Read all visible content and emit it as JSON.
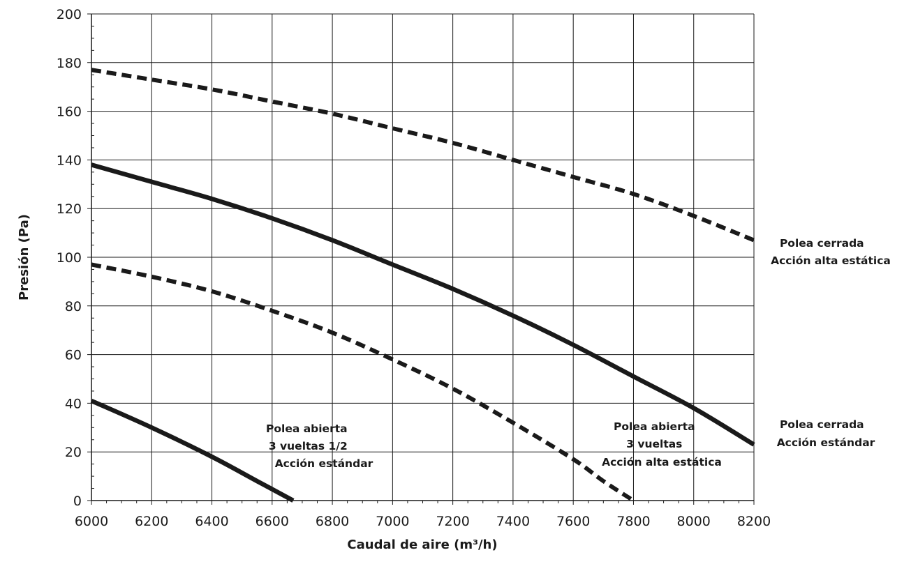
{
  "chart_data": {
    "type": "line",
    "xlabel": "Caudal de aire (m³/h)",
    "ylabel": "Presión (Pa)",
    "xlim": [
      6000,
      8200
    ],
    "ylim": [
      0,
      200
    ],
    "x_ticks": [
      6000,
      6200,
      6400,
      6600,
      6800,
      7000,
      7200,
      7400,
      7600,
      7800,
      8000,
      8200
    ],
    "y_ticks": [
      0,
      20,
      40,
      60,
      80,
      100,
      120,
      140,
      160,
      180,
      200
    ],
    "grid": true,
    "series": [
      {
        "style": "dashed",
        "color": "#1a1a1a",
        "points": [
          [
            6000,
            177
          ],
          [
            6200,
            173
          ],
          [
            6400,
            169
          ],
          [
            6600,
            164
          ],
          [
            6800,
            159
          ],
          [
            7000,
            153
          ],
          [
            7200,
            147
          ],
          [
            7400,
            140
          ],
          [
            7600,
            133
          ],
          [
            7800,
            126
          ],
          [
            8000,
            117
          ],
          [
            8200,
            107
          ]
        ]
      },
      {
        "style": "solid",
        "color": "#1a1a1a",
        "points": [
          [
            6000,
            138
          ],
          [
            6200,
            131
          ],
          [
            6400,
            124
          ],
          [
            6600,
            116
          ],
          [
            6800,
            107
          ],
          [
            7000,
            97
          ],
          [
            7200,
            87
          ],
          [
            7400,
            76
          ],
          [
            7600,
            64
          ],
          [
            7800,
            51
          ],
          [
            8000,
            38
          ],
          [
            8200,
            23
          ]
        ]
      },
      {
        "style": "dashed",
        "color": "#1a1a1a",
        "points": [
          [
            6000,
            97
          ],
          [
            6200,
            92
          ],
          [
            6400,
            86
          ],
          [
            6600,
            78
          ],
          [
            6800,
            69
          ],
          [
            7000,
            58
          ],
          [
            7200,
            46
          ],
          [
            7400,
            32
          ],
          [
            7600,
            17
          ],
          [
            7700,
            8
          ],
          [
            7800,
            0
          ]
        ]
      },
      {
        "style": "solid",
        "color": "#1a1a1a",
        "points": [
          [
            6000,
            41
          ],
          [
            6200,
            30
          ],
          [
            6400,
            18
          ],
          [
            6550,
            8
          ],
          [
            6670,
            0
          ]
        ]
      }
    ],
    "annotations": [
      {
        "lines": [
          "Polea cerrada",
          "Acción alta estática"
        ]
      },
      {
        "lines": [
          "Polea cerrada",
          "Acción estándar"
        ]
      },
      {
        "lines": [
          "Polea abierta",
          "3 vueltas",
          "Acción alta estática"
        ]
      },
      {
        "lines": [
          "Polea abierta",
          "3 vueltas 1/2",
          "Acción estándar"
        ]
      }
    ]
  }
}
